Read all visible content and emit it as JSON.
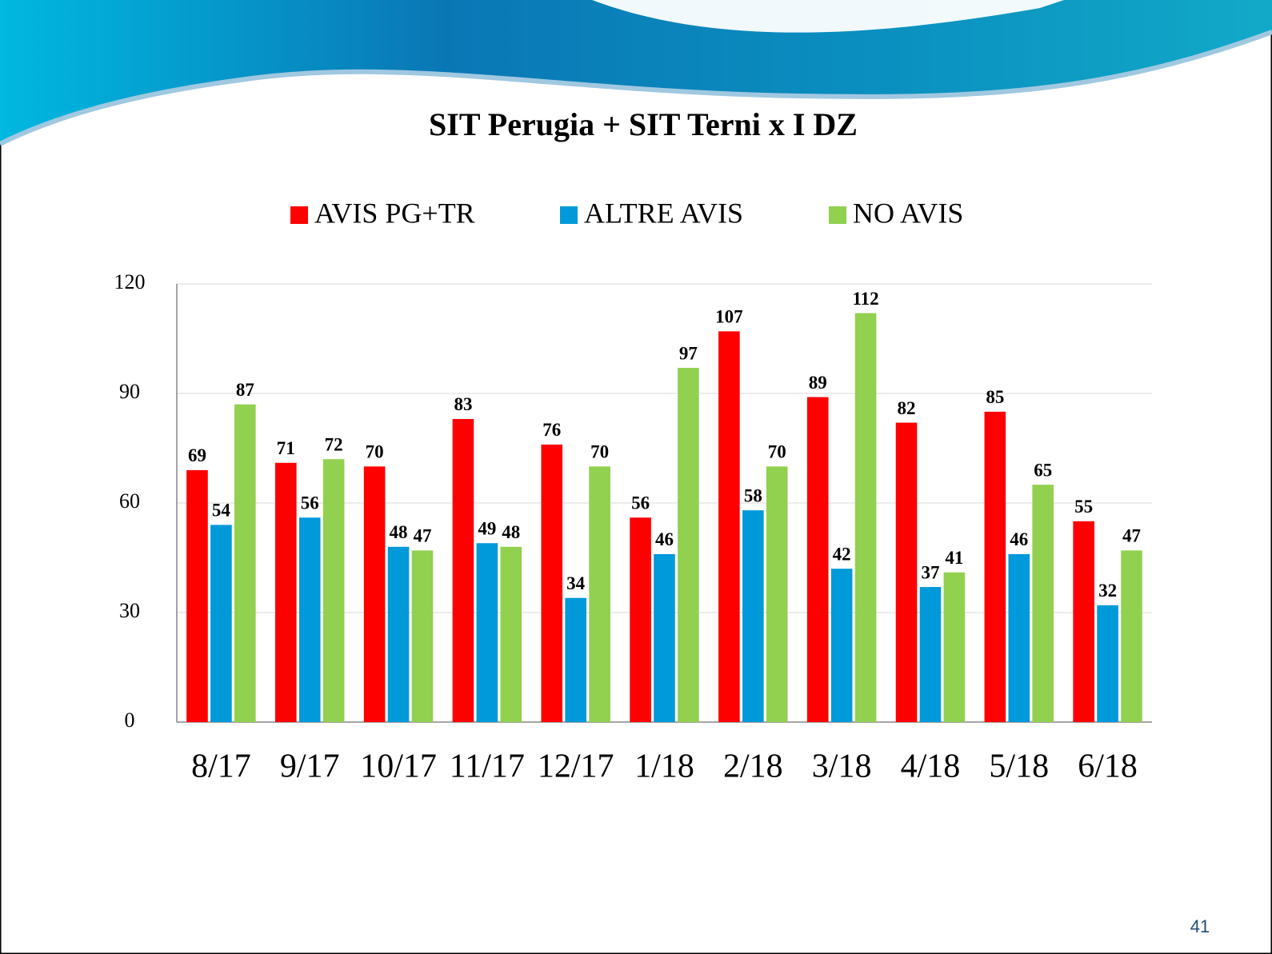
{
  "chart_data": {
    "type": "bar",
    "title": "SIT Perugia + SIT Terni x I DZ",
    "categories": [
      "8/17",
      "9/17",
      "10/17",
      "11/17",
      "12/17",
      "1/18",
      "2/18",
      "3/18",
      "4/18",
      "5/18",
      "6/18"
    ],
    "series": [
      {
        "name": "AVIS PG+TR",
        "color": "#ff0000",
        "values": [
          69,
          71,
          70,
          83,
          76,
          56,
          107,
          89,
          82,
          85,
          55
        ]
      },
      {
        "name": "ALTRE AVIS",
        "color": "#0099d9",
        "values": [
          54,
          56,
          48,
          49,
          34,
          46,
          58,
          42,
          37,
          46,
          32
        ]
      },
      {
        "name": "NO AVIS",
        "color": "#92d050",
        "values": [
          87,
          72,
          47,
          48,
          70,
          97,
          70,
          112,
          41,
          65,
          47
        ]
      }
    ],
    "ylim": [
      0,
      120
    ],
    "yticks": [
      0,
      30,
      60,
      90,
      120
    ],
    "grid": true,
    "legend": "top"
  },
  "page_number": "41"
}
